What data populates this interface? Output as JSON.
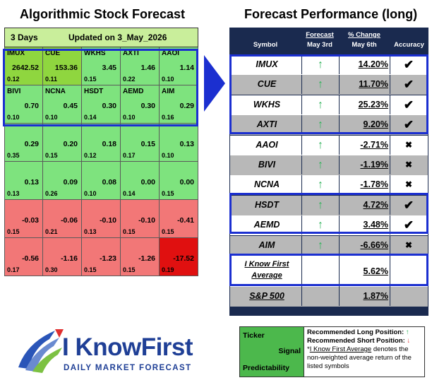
{
  "left_title": "Algorithmic Stock Forecast",
  "right_title": "Forecast Performance (long)",
  "heatmap": {
    "days": "3 Days",
    "updated": "Updated on 3_May_2026",
    "cells": [
      {
        "sym": "IMUX",
        "sig": "2642.52",
        "pred": "0.12",
        "color": "#8fd63f"
      },
      {
        "sym": "CUE",
        "sig": "153.36",
        "pred": "0.11",
        "color": "#8fd63f"
      },
      {
        "sym": "WKHS",
        "sig": "3.45",
        "pred": "0.15",
        "color": "#7ee37e"
      },
      {
        "sym": "AXTI",
        "sig": "1.46",
        "pred": "0.22",
        "color": "#7ee37e"
      },
      {
        "sym": "AAOI",
        "sig": "1.14",
        "pred": "0.10",
        "color": "#7ee37e"
      },
      {
        "sym": "BIVI",
        "sig": "0.70",
        "pred": "0.10",
        "color": "#7ee37e"
      },
      {
        "sym": "NCNA",
        "sig": "0.45",
        "pred": "0.10",
        "color": "#7ee37e"
      },
      {
        "sym": "HSDT",
        "sig": "0.30",
        "pred": "0.14",
        "color": "#7ee37e"
      },
      {
        "sym": "AEMD",
        "sig": "0.30",
        "pred": "0.10",
        "color": "#7ee37e"
      },
      {
        "sym": "AIM",
        "sig": "0.29",
        "pred": "0.16",
        "color": "#7ee37e"
      },
      {
        "sym": "",
        "sig": "0.29",
        "pred": "0.35",
        "color": "#7ee37e"
      },
      {
        "sym": "",
        "sig": "0.20",
        "pred": "0.15",
        "color": "#7ee37e"
      },
      {
        "sym": "",
        "sig": "0.18",
        "pred": "0.12",
        "color": "#7ee37e"
      },
      {
        "sym": "",
        "sig": "0.15",
        "pred": "0.17",
        "color": "#7ee37e"
      },
      {
        "sym": "",
        "sig": "0.13",
        "pred": "0.10",
        "color": "#7ee37e"
      },
      {
        "sym": "",
        "sig": "0.13",
        "pred": "0.13",
        "color": "#7ee37e"
      },
      {
        "sym": "",
        "sig": "0.09",
        "pred": "0.26",
        "color": "#7ee37e"
      },
      {
        "sym": "",
        "sig": "0.08",
        "pred": "0.10",
        "color": "#7ee37e"
      },
      {
        "sym": "",
        "sig": "0.00",
        "pred": "0.14",
        "color": "#7ee37e"
      },
      {
        "sym": "",
        "sig": "0.00",
        "pred": "0.15",
        "color": "#7ee37e"
      },
      {
        "sym": "",
        "sig": "-0.03",
        "pred": "0.15",
        "color": "#f27777"
      },
      {
        "sym": "",
        "sig": "-0.06",
        "pred": "0.21",
        "color": "#f27777"
      },
      {
        "sym": "",
        "sig": "-0.10",
        "pred": "0.13",
        "color": "#f27777"
      },
      {
        "sym": "",
        "sig": "-0.10",
        "pred": "0.15",
        "color": "#f27777"
      },
      {
        "sym": "",
        "sig": "-0.41",
        "pred": "0.15",
        "color": "#f27777"
      },
      {
        "sym": "",
        "sig": "-0.56",
        "pred": "0.17",
        "color": "#f27777"
      },
      {
        "sym": "",
        "sig": "-1.16",
        "pred": "0.30",
        "color": "#f27777"
      },
      {
        "sym": "",
        "sig": "-1.23",
        "pred": "0.15",
        "color": "#f27777"
      },
      {
        "sym": "",
        "sig": "-1.26",
        "pred": "0.15",
        "color": "#f27777"
      },
      {
        "sym": "",
        "sig": "-17.52",
        "pred": "0.19",
        "color": "#e01010"
      }
    ]
  },
  "table": {
    "head_symbol": "Symbol",
    "head_forecast": "Forecast",
    "head_forecast_date": "May 3rd",
    "head_change": "% Change",
    "head_change_date": "May 6th",
    "head_accuracy": "Accuracy",
    "rows": [
      {
        "sym": "IMUX",
        "pct": "14.20%",
        "acc": "✔",
        "bg": "w"
      },
      {
        "sym": "CUE",
        "pct": "11.70%",
        "acc": "✔",
        "bg": "g"
      },
      {
        "sym": "WKHS",
        "pct": "25.23%",
        "acc": "✔",
        "bg": "w"
      },
      {
        "sym": "AXTI",
        "pct": "9.20%",
        "acc": "✔",
        "bg": "g"
      },
      {
        "sym": "AAOI",
        "pct": "-2.71%",
        "acc": "✖",
        "bg": "w"
      },
      {
        "sym": "BIVI",
        "pct": "-1.19%",
        "acc": "✖",
        "bg": "g"
      },
      {
        "sym": "NCNA",
        "pct": "-1.78%",
        "acc": "✖",
        "bg": "w"
      },
      {
        "sym": "HSDT",
        "pct": "4.72%",
        "acc": "✔",
        "bg": "g"
      },
      {
        "sym": "AEMD",
        "pct": "3.48%",
        "acc": "✔",
        "bg": "w"
      },
      {
        "sym": "AIM",
        "pct": "-6.66%",
        "acc": "✖",
        "bg": "g"
      }
    ],
    "avg_label_1": "I Know First",
    "avg_label_2": "Average",
    "avg_value": "5.62%",
    "sp_label": "S&P 500",
    "sp_value": "1.87%",
    "up_arrow": "↑"
  },
  "logo": {
    "name": "I KnowFirst",
    "tagline": "DAILY MARKET FORECAST"
  },
  "legend": {
    "ticker": "Ticker",
    "signal": "Signal",
    "predictability": "Predictability",
    "long": "Recommended Long Position:",
    "short": "Recommended Short Position:",
    "note_star": "*",
    "note_link": "I Know First Average",
    "note_rest": " denotes the non-weighted average return of the listed symbols"
  }
}
